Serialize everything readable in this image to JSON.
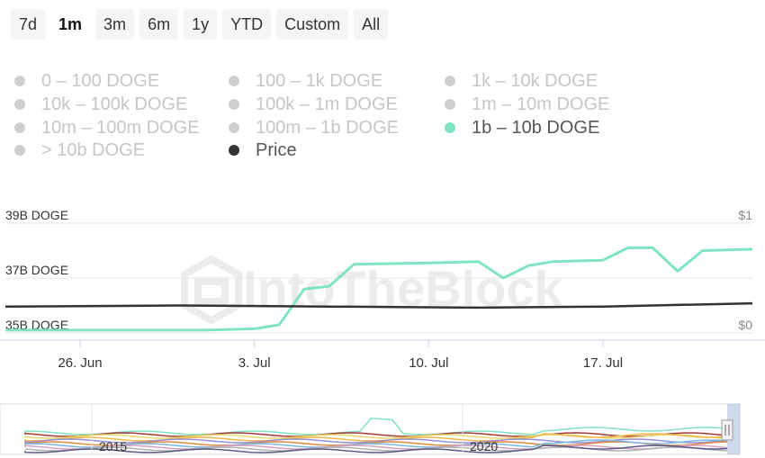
{
  "range_buttons": [
    {
      "label": "7d",
      "active": false
    },
    {
      "label": "1m",
      "active": true
    },
    {
      "label": "3m",
      "active": false
    },
    {
      "label": "6m",
      "active": false
    },
    {
      "label": "1y",
      "active": false
    },
    {
      "label": "YTD",
      "active": false
    },
    {
      "label": "Custom",
      "active": false
    },
    {
      "label": "All",
      "active": false
    }
  ],
  "legend": [
    {
      "label": "0 – 100 DOGE",
      "enabled": false,
      "color": "#cfcfcf"
    },
    {
      "label": "100 – 1k DOGE",
      "enabled": false,
      "color": "#cfcfcf"
    },
    {
      "label": "1k – 10k DOGE",
      "enabled": false,
      "color": "#cfcfcf"
    },
    {
      "label": "10k – 100k DOGE",
      "enabled": false,
      "color": "#cfcfcf"
    },
    {
      "label": "100k – 1m DOGE",
      "enabled": false,
      "color": "#cfcfcf"
    },
    {
      "label": "1m – 10m DOGE",
      "enabled": false,
      "color": "#cfcfcf"
    },
    {
      "label": "10m – 100m DOGE",
      "enabled": false,
      "color": "#cfcfcf"
    },
    {
      "label": "100m – 1b DOGE",
      "enabled": false,
      "color": "#cfcfcf"
    },
    {
      "label": "1b – 10b DOGE",
      "enabled": true,
      "color": "#7fe3c4"
    },
    {
      "label": "> 10b DOGE",
      "enabled": false,
      "color": "#cfcfcf"
    },
    {
      "label": "Price",
      "enabled": true,
      "color": "#333333"
    }
  ],
  "watermark": "IntoTheBlock",
  "chart_data": {
    "type": "line",
    "x_ticks": [
      "26. Jun",
      "3. Jul",
      "10. Jul",
      "17. Jul"
    ],
    "y_left_ticks": [
      "39B DOGE",
      "37B DOGE",
      "35B DOGE"
    ],
    "y_right_ticks": [
      "$1",
      "$0"
    ],
    "y_left_range": [
      35,
      39
    ],
    "y_right_range": [
      0,
      1
    ],
    "x_range": [
      "2021-06-23",
      "2021-07-23"
    ],
    "series": [
      {
        "name": "1b – 10b DOGE",
        "color": "#7fe3c4",
        "axis": "left",
        "points": [
          [
            "2021-06-23",
            35.1
          ],
          [
            "2021-07-01",
            35.1
          ],
          [
            "2021-07-03",
            35.15
          ],
          [
            "2021-07-04",
            35.3
          ],
          [
            "2021-07-05",
            36.6
          ],
          [
            "2021-07-06",
            36.7
          ],
          [
            "2021-07-07",
            37.5
          ],
          [
            "2021-07-10",
            37.55
          ],
          [
            "2021-07-12",
            37.6
          ],
          [
            "2021-07-13",
            37.0
          ],
          [
            "2021-07-14",
            37.45
          ],
          [
            "2021-07-15",
            37.6
          ],
          [
            "2021-07-17",
            37.65
          ],
          [
            "2021-07-18",
            38.1
          ],
          [
            "2021-07-19",
            38.1
          ],
          [
            "2021-07-20",
            37.25
          ],
          [
            "2021-07-21",
            38.0
          ],
          [
            "2021-07-23",
            38.05
          ]
        ]
      },
      {
        "name": "Price",
        "color": "#333333",
        "axis": "right",
        "points": [
          [
            "2021-06-23",
            0.24
          ],
          [
            "2021-06-30",
            0.25
          ],
          [
            "2021-07-06",
            0.24
          ],
          [
            "2021-07-12",
            0.23
          ],
          [
            "2021-07-17",
            0.24
          ],
          [
            "2021-07-23",
            0.27
          ]
        ]
      }
    ],
    "navigator": {
      "labels": [
        "2015",
        "2020"
      ],
      "colors": [
        "#7fe3c4",
        "#a33a3a",
        "#e8d86a",
        "#f0b848",
        "#9a8fd6",
        "#e08a3c",
        "#7ab8e0",
        "#d9a0c0",
        "#b0b0b0",
        "#5a5a8a"
      ]
    }
  }
}
